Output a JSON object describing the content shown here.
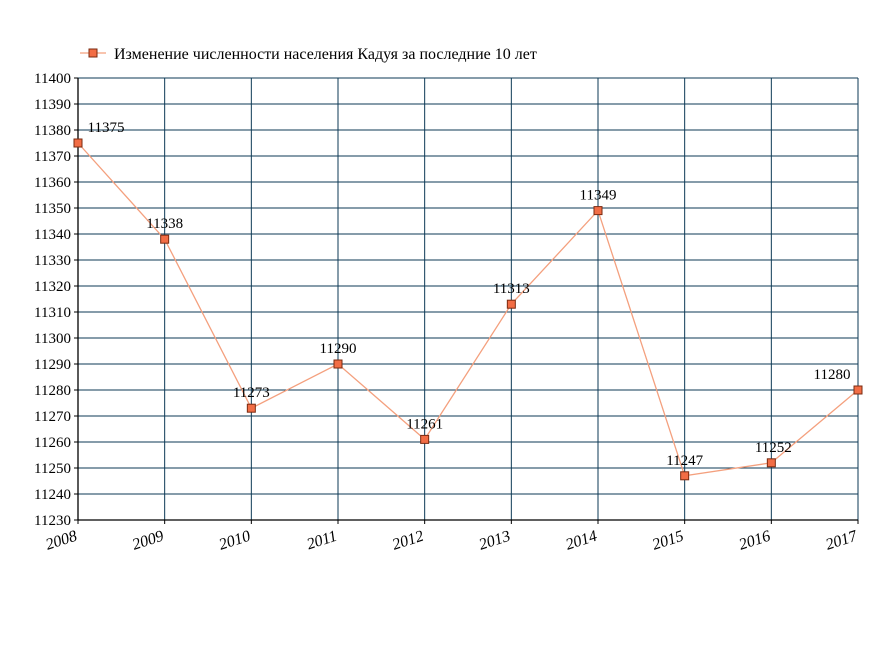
{
  "chart_data": {
    "type": "line",
    "legend": "top-left",
    "grid": true,
    "x": [
      "2008",
      "2009",
      "2010",
      "2011",
      "2012",
      "2013",
      "2014",
      "2015",
      "2016",
      "2017"
    ],
    "series": [
      {
        "name": "Изменение численности населения Кадуя за последние 10 лет",
        "values": [
          11375,
          11338,
          11273,
          11290,
          11261,
          11313,
          11349,
          11247,
          11252,
          11280
        ],
        "labels": [
          "11375",
          "11338",
          "11273",
          "11290",
          "11261",
          "11313",
          "11349",
          "11247",
          "11252",
          "11280"
        ]
      }
    ],
    "ylim": [
      11230,
      11400
    ],
    "yticks": [
      "11230",
      "11240",
      "11250",
      "11260",
      "11270",
      "11280",
      "11290",
      "11300",
      "11310",
      "11320",
      "11330",
      "11340",
      "11350",
      "11360",
      "11370",
      "11380",
      "11390",
      "11400"
    ],
    "colors": {
      "line": "#f4a07e",
      "marker_fill": "#f26d45",
      "marker_stroke": "#7a2a10",
      "grid": "#0d3a56"
    }
  }
}
